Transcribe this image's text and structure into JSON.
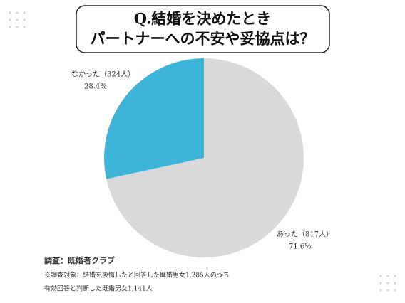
{
  "chart_data": {
    "type": "pie",
    "title": [
      "Q.結婚を決めたとき",
      "パートナーへの不安や妥協点は？"
    ],
    "categories": [
      "あった（817人）",
      "なかった（324人）"
    ],
    "values": [
      71.6,
      28.4
    ],
    "value_labels": [
      "71.6%",
      "28.4%"
    ],
    "colors": [
      "#d9d9d9",
      "#3db5d9"
    ],
    "notes": [
      "調査：既婚者クラブ",
      "※調査対象：結婚を後悔したと回答した既婚男女1,285人のうち",
      "有効回答と判断した既婚男女1,141人"
    ]
  }
}
